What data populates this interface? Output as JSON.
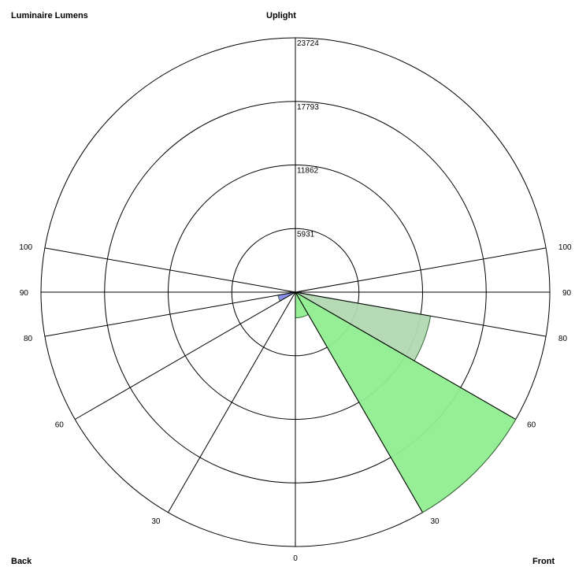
{
  "chart_data": {
    "type": "polar",
    "title": "Luminaire Lumens",
    "labels": {
      "top": "Uplight",
      "bottom_left": "Back",
      "bottom_right": "Front",
      "bottom_center": "0"
    },
    "radial_ticks": [
      5931,
      11862,
      17793,
      23724
    ],
    "rmax": 23724,
    "angle_labels": {
      "front": [
        "30",
        "60",
        "80",
        "90",
        "100"
      ],
      "back": [
        "30",
        "60",
        "80",
        "90",
        "100"
      ]
    },
    "angle_values": [
      30,
      60,
      80,
      90,
      100
    ],
    "zones": [
      {
        "side": "front",
        "from_deg": 0,
        "to_deg": 30,
        "lumens": 2400,
        "color": "#90EE90"
      },
      {
        "side": "front",
        "from_deg": 30,
        "to_deg": 60,
        "lumens": 23724,
        "color": "#90EE90"
      },
      {
        "side": "front",
        "from_deg": 60,
        "to_deg": 80,
        "lumens": 12800,
        "color": "#b2d8b2"
      },
      {
        "side": "back",
        "from_deg": 60,
        "to_deg": 80,
        "lumens": 1650,
        "color": "#8888ee"
      }
    ]
  }
}
